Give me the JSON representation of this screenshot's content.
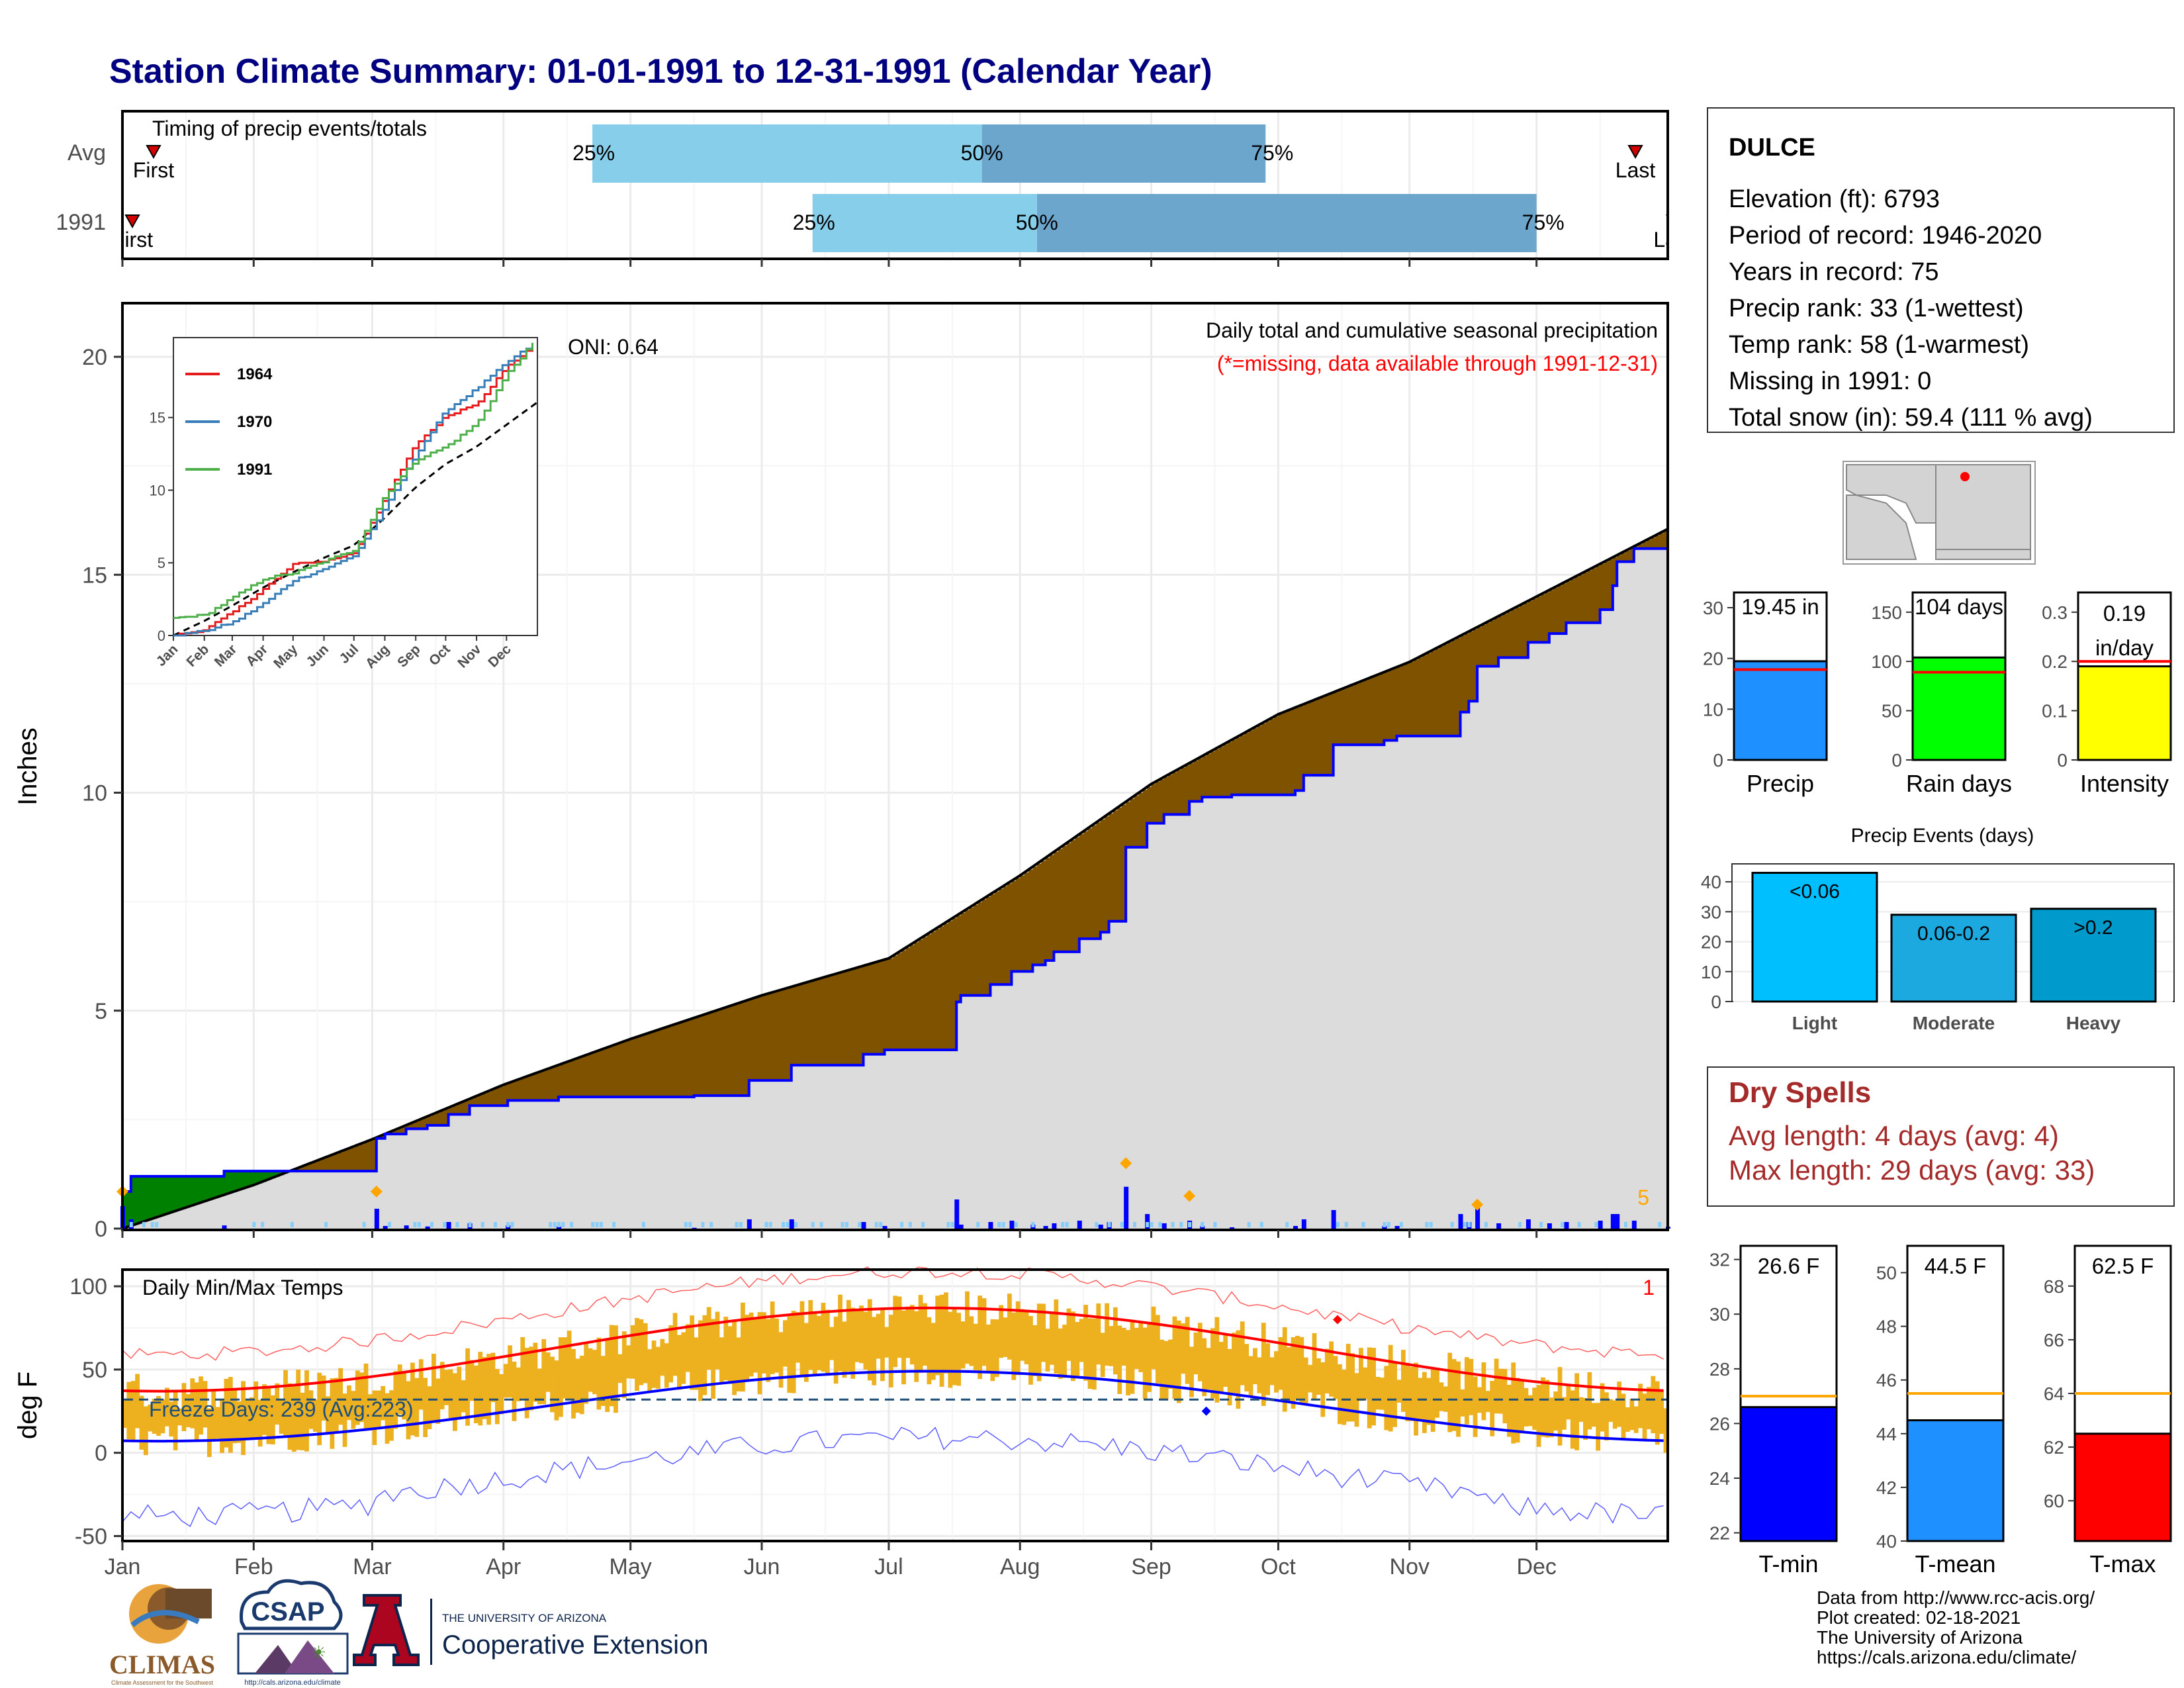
{
  "page": {
    "title": "Station Climate Summary: 01-01-1991 to 12-31-1991 (Calendar Year)",
    "title_color": "#000080"
  },
  "timing": {
    "label": "Timing of precip events/totals",
    "rows": [
      "Avg",
      "1991"
    ],
    "first_label": "First",
    "last_label": "Last",
    "avg": {
      "p25": "2021-04-22",
      "p50": "2021-07-23",
      "p75": "2021-09-28",
      "first": "2021-01-06",
      "last": "2021-12-22"
    },
    "y1991": {
      "p25": "2021-06-13",
      "p50": "2021-08-05",
      "p75": "2021-12-01",
      "first": "2021-01-01",
      "last": "2021-12-31"
    },
    "pct_labels": [
      "25%",
      "50%",
      "75%"
    ],
    "colors": {
      "light": "#87CEEB",
      "dark": "#6CA6CD"
    }
  },
  "station": {
    "name": "DULCE",
    "lines": [
      "Elevation (ft): 6793",
      "Period of record: 1946-2020",
      "Years in record: 75",
      "Precip rank: 33 (1-wettest)",
      "Temp rank: 58 (1-warmest)",
      "Missing in 1991: 0",
      "Total snow (in): 59.4 (111 % avg)"
    ]
  },
  "precip_panel": {
    "ylabel": "Inches",
    "yticks": [
      0,
      5,
      10,
      15,
      20
    ],
    "ylim": [
      0,
      21.2
    ],
    "title": "Daily total and cumulative seasonal precipitation",
    "subtitle": "(*=missing, data available through 1991-12-31)",
    "oni": "ONI: 0.64",
    "corner_count": "5",
    "colors": {
      "observed": "#0000FF",
      "above": "#008000",
      "below": "#7F5200",
      "avg_fill": "#DCDCDC"
    }
  },
  "inset": {
    "yticks": [
      0,
      5,
      10,
      15
    ],
    "months": [
      "Jan",
      "Feb",
      "Mar",
      "Apr",
      "May",
      "Jun",
      "Jul",
      "Aug",
      "Sep",
      "Oct",
      "Nov",
      "Dec"
    ],
    "legend": [
      {
        "name": "1964",
        "color": "#E41A1C"
      },
      {
        "name": "1970",
        "color": "#377EB8"
      },
      {
        "name": "1991",
        "color": "#4DAF4A"
      }
    ]
  },
  "temp_panel": {
    "ylabel": "deg F",
    "title": "Daily Min/Max Temps",
    "yticks": [
      -50,
      0,
      50,
      100
    ],
    "ylim": [
      -53,
      110
    ],
    "freeze": "Freeze Days: 239 (Avg:223)",
    "corner_count": "1",
    "freeze_line": 32
  },
  "x_months": [
    "Jan",
    "Feb",
    "Mar",
    "Apr",
    "May",
    "Jun",
    "Jul",
    "Aug",
    "Sep",
    "Oct",
    "Nov",
    "Dec"
  ],
  "summary_bars": [
    {
      "label": "Precip",
      "value_text": "19.45 in",
      "value": 19.45,
      "avg": 17.8,
      "ymax": 33,
      "ticks": [
        0,
        10,
        20,
        30
      ],
      "color": "#1E90FF"
    },
    {
      "label": "Rain days",
      "value_text": "104 days",
      "value": 104,
      "avg": 89,
      "ymax": 170,
      "ticks": [
        0,
        50,
        100,
        150
      ],
      "color": "#00FF00"
    },
    {
      "label": "Intensity",
      "value_text": "0.19 in/day",
      "value": 0.19,
      "avg": 0.2,
      "ymax": 0.34,
      "ticks": [
        0.0,
        0.1,
        0.2,
        0.3
      ],
      "color": "#FFFF00"
    }
  ],
  "precip_events": {
    "title": "Precip Events (days)",
    "ticks": [
      0,
      10,
      20,
      30,
      40
    ],
    "ymax": 46,
    "bars": [
      {
        "label": "Light",
        "text": "<0.06",
        "value": 43,
        "color": "#00BFFF"
      },
      {
        "label": "Moderate",
        "text": "0.06-0.2",
        "value": 29,
        "color": "#1CA9E0"
      },
      {
        "label": "Heavy",
        "text": ">0.2",
        "value": 31,
        "color": "#009ACD"
      }
    ]
  },
  "dry_spells": {
    "title": "Dry Spells",
    "lines": [
      "Avg length: 4 days (avg: 4)",
      "Max length: 29 days (avg: 33)"
    ],
    "color": "#A52A2A"
  },
  "temp_bars": [
    {
      "label": "T-min",
      "value_text": "26.6 F",
      "value": 26.6,
      "avg": 27.0,
      "ylim": [
        21.7,
        32.5
      ],
      "ticks": [
        22,
        24,
        26,
        28,
        30,
        32
      ],
      "color": "#0000FF"
    },
    {
      "label": "T-mean",
      "value_text": "44.5 F",
      "value": 44.5,
      "avg": 45.5,
      "ylim": [
        40,
        51
      ],
      "ticks": [
        40,
        42,
        44,
        46,
        48,
        50
      ],
      "color": "#1E90FF"
    },
    {
      "label": "T-max",
      "value_text": "62.5 F",
      "value": 62.5,
      "avg": 64.0,
      "ylim": [
        58.5,
        69.5
      ],
      "ticks": [
        60,
        62,
        64,
        66,
        68
      ],
      "color": "#FF0000"
    }
  ],
  "credits": [
    "Data from http://www.rcc-acis.org/",
    "Plot created: 02-18-2021",
    "The University of Arizona",
    "https://cals.arizona.edu/climate/"
  ],
  "logos": {
    "climas": "CLIMAS",
    "climas_sub": "Climate Assessment for the Southwest",
    "csap": "CSAP",
    "csap_url": "http://cals.arizona.edu/climate",
    "ua_letter": "A",
    "ua_line1": "THE UNIVERSITY OF ARIZONA",
    "ua_line2": "Cooperative Extension"
  }
}
